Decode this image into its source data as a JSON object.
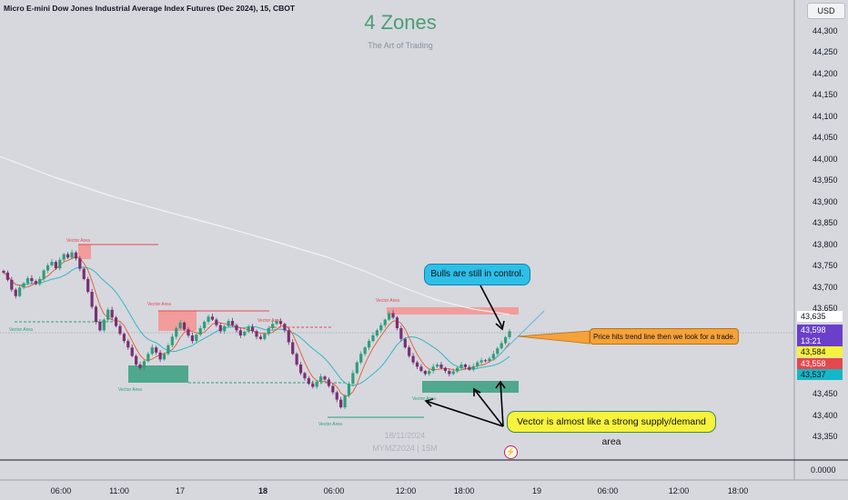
{
  "header": {
    "symbol_title": "Micro E-mini Dow Jones Industrial Average Index Futures (Dec 2024), 15, CBOT",
    "brand_title": "4 Zones",
    "brand_subtitle": "The Art of Trading",
    "currency": "USD"
  },
  "price_axis": {
    "ticks": [
      "44,300",
      "44,250",
      "44,200",
      "44,150",
      "44,100",
      "44,050",
      "44,000",
      "43,950",
      "43,900",
      "43,850",
      "43,800",
      "43,750",
      "43,700",
      "43,650",
      "43,450",
      "43,400",
      "43,350"
    ],
    "zero_label": "0.0000"
  },
  "price_tags": [
    {
      "value": "43,635",
      "bg": "#ffffff",
      "fg": "#131722"
    },
    {
      "value": "43,598",
      "extra": "13:21",
      "bg": "#6a3fc9",
      "fg": "#ffffff"
    },
    {
      "value": "43,584",
      "bg": "#f7f23c",
      "fg": "#131722"
    },
    {
      "value": "43,558",
      "bg": "#e5484d",
      "fg": "#ffffff"
    },
    {
      "value": "43,537",
      "bg": "#14b7c7",
      "fg": "#131722"
    }
  ],
  "time_axis": {
    "ticks": [
      {
        "label": "06:00",
        "bold": false
      },
      {
        "label": "11:00",
        "bold": false
      },
      {
        "label": "17",
        "bold": false
      },
      {
        "label": "18",
        "bold": true
      },
      {
        "label": "06:00",
        "bold": false
      },
      {
        "label": "12:00",
        "bold": false
      },
      {
        "label": "18:00",
        "bold": false
      },
      {
        "label": "19",
        "bold": false
      },
      {
        "label": "06:00",
        "bold": false
      },
      {
        "label": "12:00",
        "bold": false
      },
      {
        "label": "18:00",
        "bold": false
      }
    ]
  },
  "annotations": {
    "bulls_callout": "Bulls are still in control.",
    "trend_callout": "Price hits trend line then we look for a trade.",
    "vector_callout": "Vector is almost like a strong supply/demand area",
    "vector_area_label": "Vector Area"
  },
  "watermark": {
    "date": "18/11/2024",
    "symbol": "MYMZ2024 | 15M"
  },
  "colors": {
    "up": "#2f9e7a",
    "down": "#7a2f73",
    "supply_zone": "#f29c9c",
    "demand_zone": "#4fa88d",
    "ma_fast": "#e8592f",
    "ma_mid": "#34b6c4",
    "ma_slow": "#f2f2f2"
  },
  "chart_data": {
    "type": "candlestick",
    "symbol": "MYMZ2024",
    "interval": "15",
    "ylim": [
      43350,
      44300
    ],
    "closes": [
      43735,
      43718,
      43695,
      43680,
      43700,
      43710,
      43722,
      43715,
      43708,
      43720,
      43740,
      43752,
      43760,
      43745,
      43765,
      43778,
      43770,
      43782,
      43768,
      43744,
      43720,
      43690,
      43655,
      43620,
      43600,
      43625,
      43648,
      43630,
      43610,
      43592,
      43575,
      43560,
      43540,
      43520,
      43512,
      43528,
      43545,
      43560,
      43548,
      43532,
      43545,
      43565,
      43585,
      43605,
      43618,
      43602,
      43588,
      43575,
      43590,
      43605,
      43620,
      43632,
      43625,
      43612,
      43598,
      43610,
      43622,
      43612,
      43600,
      43588,
      43597,
      43608,
      43598,
      43585,
      43580,
      43592,
      43605,
      43615,
      43622,
      43615,
      43600,
      43572,
      43545,
      43520,
      43500,
      43488,
      43475,
      43468,
      43480,
      43492,
      43485,
      43470,
      43455,
      43438,
      43420,
      43448,
      43475,
      43500,
      43525,
      43545,
      43560,
      43575,
      43588,
      43600,
      43612,
      43625,
      43640,
      43630,
      43605,
      43580,
      43560,
      43540,
      43525,
      43515,
      43505,
      43498,
      43505,
      43515,
      43520,
      43512,
      43505,
      43498,
      43504,
      43512,
      43520,
      43514,
      43508,
      43516,
      43525,
      43530,
      43528,
      43534,
      43545,
      43558,
      43570,
      43584,
      43598
    ]
  }
}
